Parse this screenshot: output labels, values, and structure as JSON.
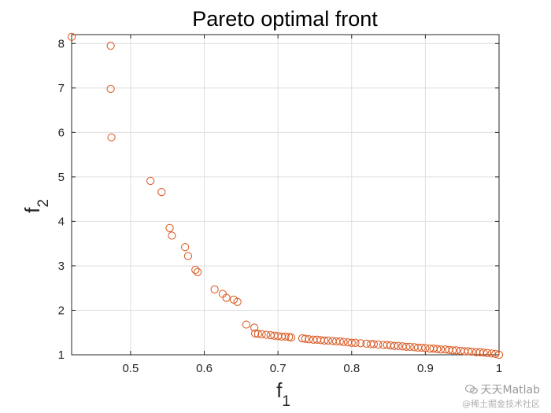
{
  "chart_data": {
    "type": "scatter",
    "title": "Pareto optimal front",
    "xlabel": "f",
    "xlabel_sub": "1",
    "ylabel": "f",
    "ylabel_sub": "2",
    "xlim": [
      0.42,
      1.0
    ],
    "ylim": [
      1,
      8.2
    ],
    "xticks": [
      "0.5",
      "0.6",
      "0.7",
      "0.8",
      "0.9",
      "1"
    ],
    "xtick_values": [
      0.5,
      0.6,
      0.7,
      0.8,
      0.9,
      1.0
    ],
    "yticks": [
      "1",
      "2",
      "3",
      "4",
      "5",
      "6",
      "7",
      "8"
    ],
    "ytick_values": [
      1,
      2,
      3,
      4,
      5,
      6,
      7,
      8
    ],
    "grid": true,
    "marker": "open-circle",
    "marker_color": "#D95319",
    "points": [
      [
        0.42,
        8.15
      ],
      [
        0.473,
        7.95
      ],
      [
        0.473,
        6.98
      ],
      [
        0.474,
        5.89
      ],
      [
        0.527,
        4.91
      ],
      [
        0.542,
        4.66
      ],
      [
        0.553,
        3.85
      ],
      [
        0.556,
        3.68
      ],
      [
        0.574,
        3.42
      ],
      [
        0.578,
        3.22
      ],
      [
        0.588,
        2.91
      ],
      [
        0.591,
        2.86
      ],
      [
        0.614,
        2.47
      ],
      [
        0.625,
        2.37
      ],
      [
        0.63,
        2.28
      ],
      [
        0.64,
        2.24
      ],
      [
        0.645,
        2.19
      ],
      [
        0.657,
        1.68
      ],
      [
        0.668,
        1.61
      ],
      [
        0.669,
        1.48
      ],
      [
        0.673,
        1.47
      ],
      [
        0.678,
        1.46
      ],
      [
        0.684,
        1.45
      ],
      [
        0.69,
        1.44
      ],
      [
        0.695,
        1.43
      ],
      [
        0.7,
        1.42
      ],
      [
        0.705,
        1.41
      ],
      [
        0.71,
        1.41
      ],
      [
        0.715,
        1.4
      ],
      [
        0.718,
        1.39
      ],
      [
        0.733,
        1.37
      ],
      [
        0.737,
        1.36
      ],
      [
        0.742,
        1.35
      ],
      [
        0.748,
        1.34
      ],
      [
        0.753,
        1.34
      ],
      [
        0.758,
        1.33
      ],
      [
        0.763,
        1.32
      ],
      [
        0.768,
        1.32
      ],
      [
        0.774,
        1.31
      ],
      [
        0.779,
        1.3
      ],
      [
        0.784,
        1.3
      ],
      [
        0.789,
        1.29
      ],
      [
        0.795,
        1.28
      ],
      [
        0.8,
        1.27
      ],
      [
        0.805,
        1.27
      ],
      [
        0.812,
        1.26
      ],
      [
        0.82,
        1.25
      ],
      [
        0.826,
        1.24
      ],
      [
        0.83,
        1.24
      ],
      [
        0.836,
        1.23
      ],
      [
        0.843,
        1.22
      ],
      [
        0.848,
        1.22
      ],
      [
        0.853,
        1.21
      ],
      [
        0.858,
        1.2
      ],
      [
        0.863,
        1.2
      ],
      [
        0.869,
        1.19
      ],
      [
        0.874,
        1.18
      ],
      [
        0.879,
        1.18
      ],
      [
        0.885,
        1.17
      ],
      [
        0.89,
        1.16
      ],
      [
        0.895,
        1.16
      ],
      [
        0.9,
        1.15
      ],
      [
        0.906,
        1.14
      ],
      [
        0.911,
        1.14
      ],
      [
        0.916,
        1.13
      ],
      [
        0.921,
        1.12
      ],
      [
        0.927,
        1.12
      ],
      [
        0.932,
        1.11
      ],
      [
        0.937,
        1.1
      ],
      [
        0.942,
        1.1
      ],
      [
        0.948,
        1.09
      ],
      [
        0.953,
        1.08
      ],
      [
        0.958,
        1.08
      ],
      [
        0.963,
        1.07
      ],
      [
        0.969,
        1.06
      ],
      [
        0.974,
        1.06
      ],
      [
        0.979,
        1.05
      ],
      [
        0.984,
        1.04
      ],
      [
        0.99,
        1.03
      ],
      [
        0.995,
        1.02
      ],
      [
        1.0,
        1.0
      ]
    ]
  },
  "watermark": {
    "line1": "天天Matlab",
    "line2": "@稀土掘金技术社区"
  }
}
